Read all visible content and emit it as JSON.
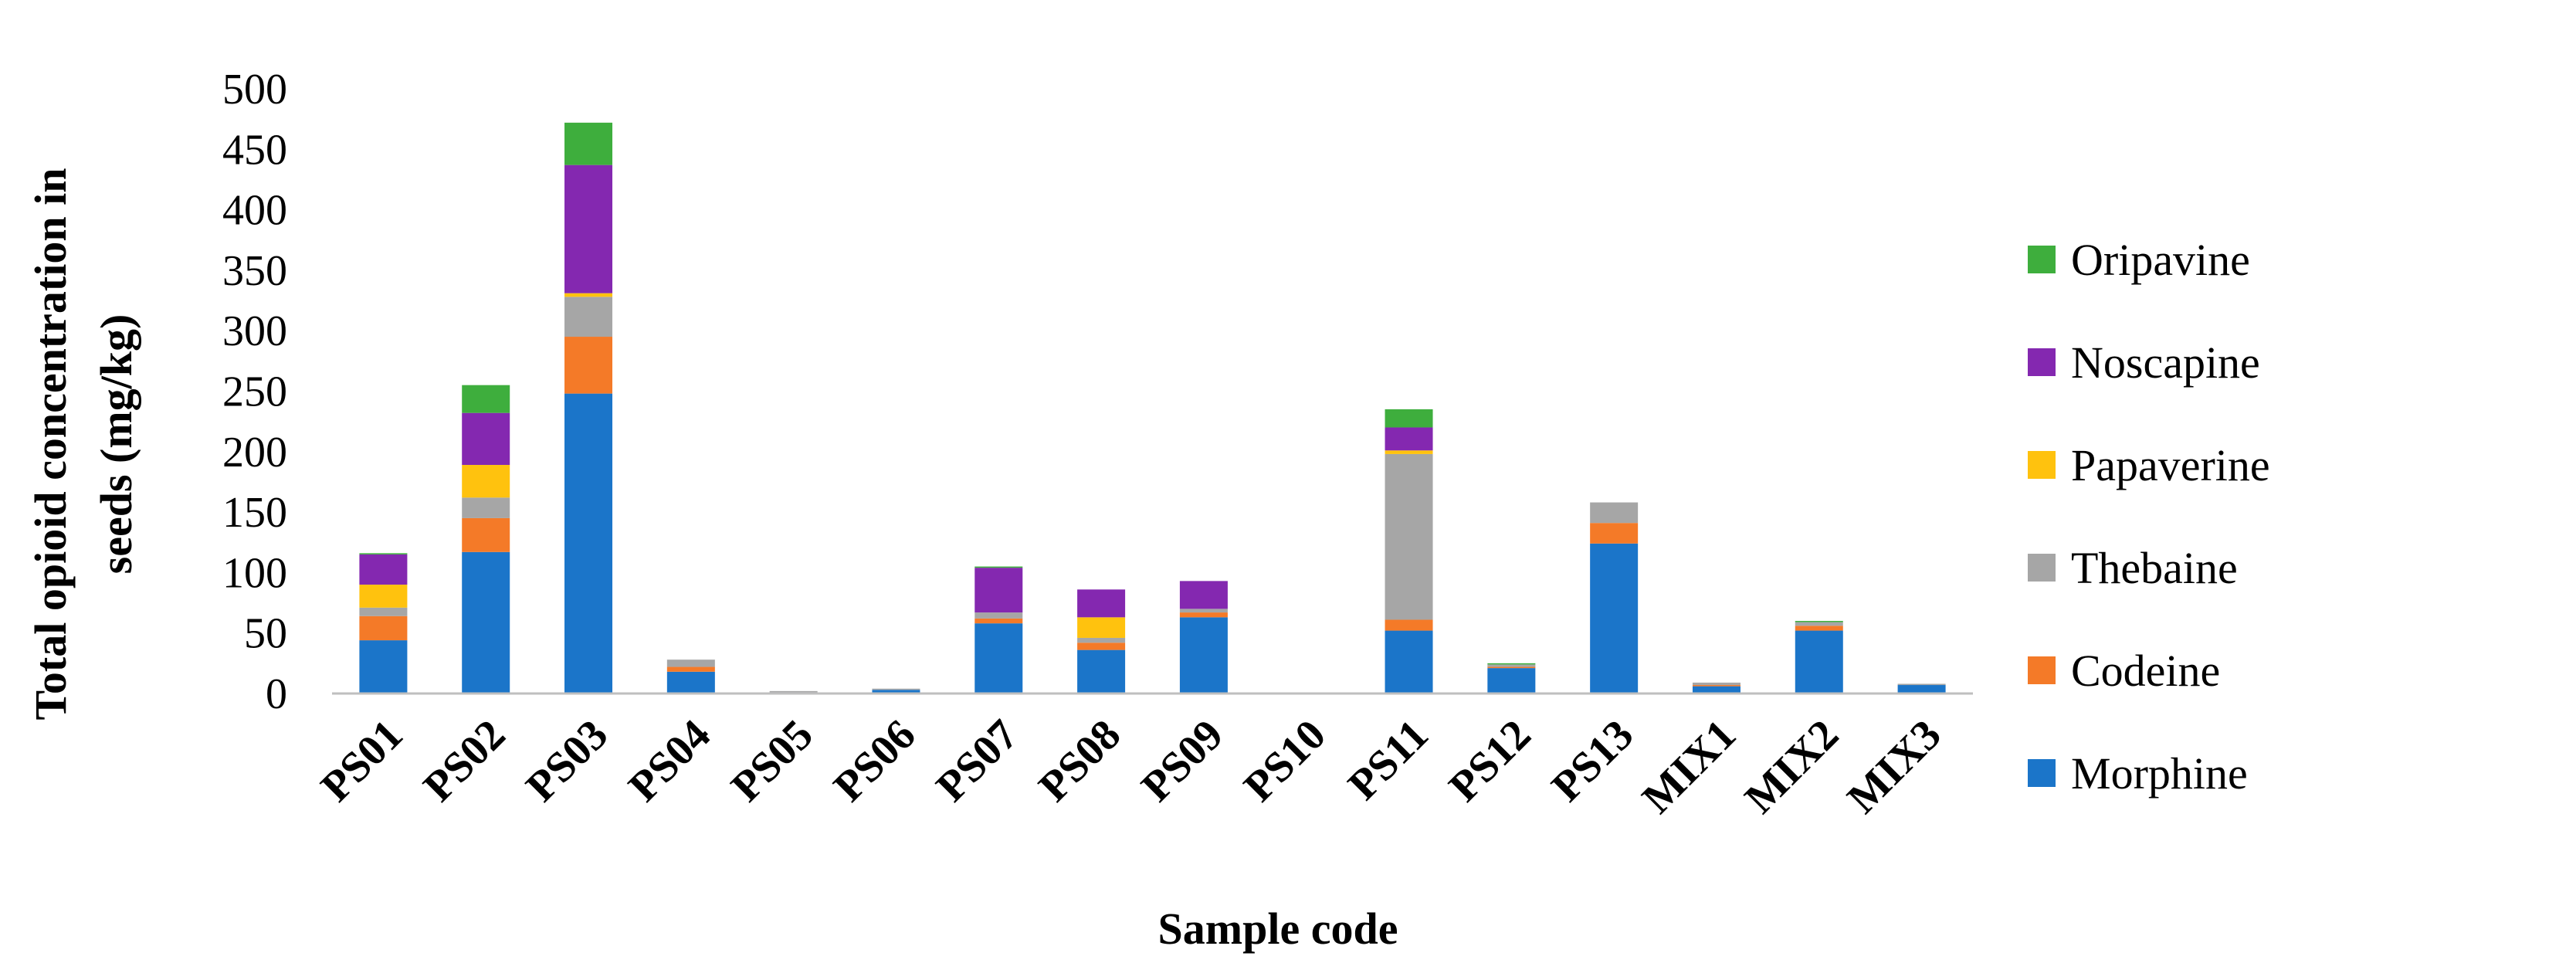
{
  "chart_data": {
    "type": "bar",
    "stacked": true,
    "categories": [
      "PS01",
      "PS02",
      "PS03",
      "PS04",
      "PS05",
      "PS06",
      "PS07",
      "PS08",
      "PS09",
      "PS10",
      "PS11",
      "PS12",
      "PS13",
      "MIX1",
      "MIX2",
      "MIX3"
    ],
    "series": [
      {
        "name": "Morphine",
        "color": "#1b75c9",
        "values": [
          44,
          117,
          248,
          18,
          1,
          3,
          58,
          36,
          63,
          0,
          52,
          21,
          124,
          6,
          52,
          7
        ]
      },
      {
        "name": "Codeine",
        "color": "#f47a28",
        "values": [
          20,
          28,
          47,
          4,
          0,
          0,
          4,
          6,
          4,
          0,
          9,
          1,
          17,
          1,
          4,
          0
        ]
      },
      {
        "name": "Thebaine",
        "color": "#a6a6a6",
        "values": [
          7,
          17,
          33,
          6,
          1,
          1,
          5,
          4,
          3,
          0,
          137,
          2,
          17,
          2,
          3,
          1
        ]
      },
      {
        "name": "Papaverine",
        "color": "#ffc20e",
        "values": [
          19,
          27,
          3,
          0,
          0,
          0,
          0,
          17,
          0,
          0,
          3,
          0,
          0,
          0,
          0,
          0
        ]
      },
      {
        "name": "Noscapine",
        "color": "#8428b0",
        "values": [
          25,
          43,
          106,
          0,
          0,
          0,
          37,
          23,
          23,
          0,
          19,
          0,
          0,
          0,
          0,
          0
        ]
      },
      {
        "name": "Oripavine",
        "color": "#3eae3d",
        "values": [
          1,
          23,
          35,
          0,
          0,
          0,
          1,
          0,
          0,
          0,
          15,
          1,
          0,
          0,
          1,
          0
        ]
      }
    ],
    "ylim": [
      0,
      500
    ],
    "yticks": [
      0,
      50,
      100,
      150,
      200,
      250,
      300,
      350,
      400,
      450,
      500
    ],
    "xlabel": "Sample code",
    "ylabel_line1": "Total opioid concentration in",
    "ylabel_line2": "seeds (mg/kg)",
    "legend_position": "right",
    "legend_order": [
      "Oripavine",
      "Noscapine",
      "Papaverine",
      "Thebaine",
      "Codeine",
      "Morphine"
    ],
    "grid": false
  }
}
